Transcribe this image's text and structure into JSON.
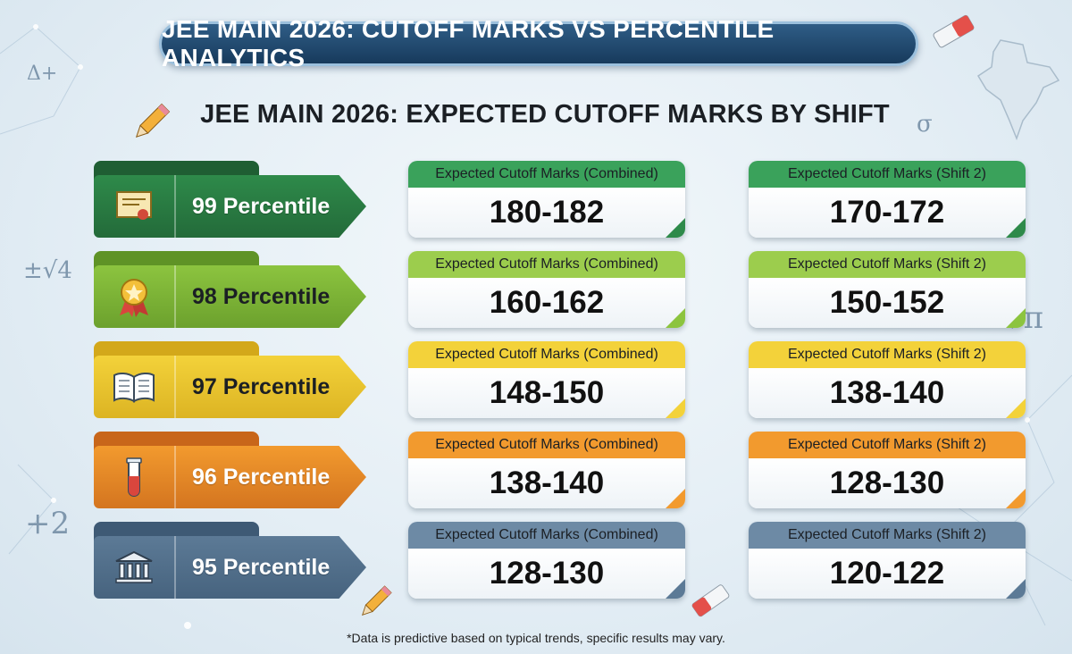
{
  "banner_title": "JEE MAIN 2026: CUTOFF MARKS VS PERCENTILE ANALYTICS",
  "footnote": "*Data is predictive based on typical trends, specific results may vary.",
  "decorations": {
    "math_symbols": [
      "Δ+",
      "σ",
      "±√4",
      "√π",
      "+2"
    ],
    "icons": [
      "pencil-icon",
      "eraser-icon",
      "india-map-icon"
    ]
  },
  "chart_data": {
    "type": "table",
    "title": "JEE MAIN 2026: EXPECTED CUTOFF MARKS BY SHIFT",
    "columns": [
      "Expected Cutoff Marks (Combined)",
      "Expected Cutoff Marks (Shift 2)"
    ],
    "rows": [
      {
        "percentile": "99 Percentile",
        "icon": "certificate-icon",
        "combined": "180-182",
        "shift2": "170-172",
        "color": "#2e8a4a",
        "tab_color": "#1f5e33",
        "head_color": "#3aa25b",
        "label_dark": false
      },
      {
        "percentile": "98 Percentile",
        "icon": "medal-icon",
        "combined": "160-162",
        "shift2": "150-152",
        "color": "#8cc43f",
        "tab_color": "#5f9326",
        "head_color": "#9ccd4d",
        "label_dark": true
      },
      {
        "percentile": "97 Percentile",
        "icon": "book-icon",
        "combined": "148-150",
        "shift2": "138-140",
        "color": "#f3d23a",
        "tab_color": "#d3a81a",
        "head_color": "#f3d23a",
        "label_dark": true
      },
      {
        "percentile": "96 Percentile",
        "icon": "test-tube-icon",
        "combined": "138-140",
        "shift2": "128-130",
        "color": "#f29a2e",
        "tab_color": "#c8661a",
        "head_color": "#f29a2e",
        "label_dark": false
      },
      {
        "percentile": "95 Percentile",
        "icon": "bank-icon",
        "combined": "128-130",
        "shift2": "120-122",
        "color": "#5c7a96",
        "tab_color": "#3e5a75",
        "head_color": "#6d8aa5",
        "label_dark": false
      }
    ]
  }
}
